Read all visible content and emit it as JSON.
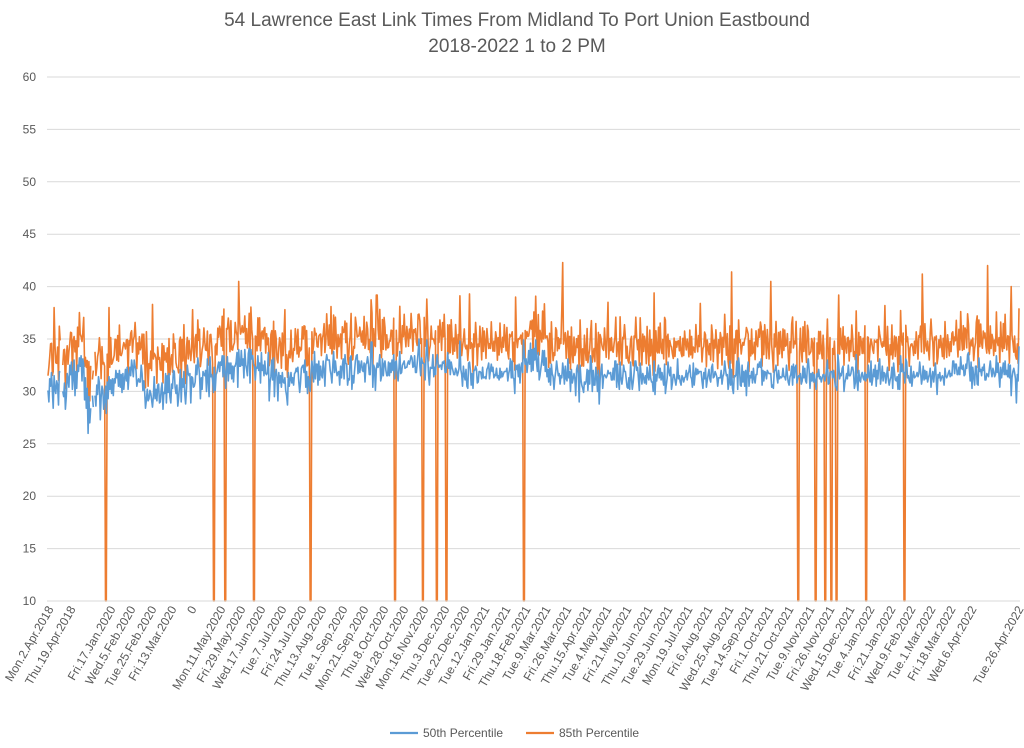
{
  "chart_data": {
    "type": "line",
    "title": [
      "54 Lawrence East Link Times From Midland To Port Union Eastbound",
      "2018-2022 1 to 2 PM"
    ],
    "xlabel": "",
    "ylabel": "",
    "ylim": [
      10,
      60
    ],
    "yticks": [
      10,
      15,
      20,
      25,
      30,
      35,
      40,
      45,
      50,
      55,
      60
    ],
    "grid": "horizontal",
    "legend_position": "bottom",
    "x_tick_labels": [
      "Mon.2.Apr.2018",
      "Thu.19.Apr.2018",
      "Fri.17.Jan.2020",
      "Wed.5.Feb.2020",
      "Tue.25.Feb.2020",
      "Fri.13.Mar.2020",
      "0",
      "Mon.11.May.2020",
      "Fri.29.May.2020",
      "Wed.17.Jun.2020",
      "Tue.7.Jul.2020",
      "Fri.24.Jul.2020",
      "Thu.13.Aug.2020",
      "Tue.1.Sep.2020",
      "Mon.21.Sep.2020",
      "Thu.8.Oct.2020",
      "Wed.28.Oct.2020",
      "Mon.16.Nov.2020",
      "Thu.3.Dec.2020",
      "Tue.22.Dec.2020",
      "Tue.12.Jan.2021",
      "Fri.29.Jan.2021",
      "Thu.18.Feb.2021",
      "Tue.9.Mar.2021",
      "Fri.26.Mar.2021",
      "Thu.15.Apr.2021",
      "Tue.4.May.2021",
      "Fri.21.May.2021",
      "Thu.10.Jun.2021",
      "Tue.29.Jun.2021",
      "Mon.19.Jul.2021",
      "Fri.6.Aug.2021",
      "Wed.25.Aug.2021",
      "Tue.14.Sep.2021",
      "Fri.1.Oct.2021",
      "Thu.21.Oct.2021",
      "Tue.9.Nov.2021",
      "Fri.26.Nov.2021",
      "Wed.15.Dec.2021",
      "Tue.4.Jan.2022",
      "Fri.21.Jan.2022",
      "Wed.9.Feb.2022",
      "Tue.1.Mar.2022",
      "Fri.18.Mar.2022",
      "Wed.6.Apr.2022",
      "Tue.26.Apr.2022"
    ],
    "series": [
      {
        "name": "50th Percentile",
        "color": "#5B9BD5",
        "values": [
          30.1,
          29.0,
          31.2,
          30.5,
          31.8,
          30.0,
          28.4,
          31.5,
          30.2,
          29.8,
          31.0,
          30.6,
          28.7,
          31.9,
          31.8,
          null,
          null,
          30.0,
          29.5,
          30.8,
          28.3,
          29.5,
          31.7,
          31.2,
          30.4,
          32.5,
          31.6,
          32.8,
          30.2,
          31.4,
          33.0,
          29.6,
          31.9,
          30.3,
          32.5,
          31.9,
          33.2,
          32.4,
          33.4,
          31.0,
          33.1,
          32.6,
          29.2,
          31.3,
          28.4,
          30.3,
          26.0,
          29.5,
          27.0,
          28.4,
          null,
          29.6,
          28.5,
          null,
          29.6,
          28.6,
          30.6,
          29.7,
          31.4,
          30.8,
          27.3,
          29.4,
          30.5,
          30.1,
          28.3,
          29.2,
          30.5,
          27.9,
          30.9,
          29.3,
          31.4,
          30.2,
          31.1,
          29.8,
          31.2,
          29.6,
          31.2,
          30.8,
          32.0,
          31.3,
          31.7,
          30.5,
          32.0,
          30.4,
          31.6,
          29.9,
          31.7,
          30.2,
          31.2,
          32.1,
          31.0,
          32.3,
          30.2,
          31.5,
          32.3,
          31.5,
          33.0,
          32.2,
          31.4,
          33.0,
          32.4,
          32.0,
          30.5,
          31.0,
          31.2,
          30.9,
          30.9,
          32.5,
          31.7,
          30.1,
          31.0,
          29.9,
          28.4,
          29.2,
          30.2,
          29.1,
          29.3,
          30.1,
          29.8,
          29.2,
          28.5,
          29.6,
          31.4,
          29.3,
          30.2,
          29.1,
          30.6,
          30.7,
          28.9,
          29.0,
          30.2,
          30.8,
          28.3,
          29.9,
          29.8,
          31.7,
          28.9,
          31.5,
          29.9,
          31.7,
          29.5,
          28.9,
          30.7,
          30.3,
          32.0,
          31.9,
          30.4,
          29.8,
          30.6,
          28.6,
          29.4,
          30.5,
          32.1,
          29.0,
          31.2,
          30.4,
          31.9,
          29.9,
          28.8,
          30.3,
          32.5,
          31.7,
          31.5,
          31.7,
          28.9,
          31.4,
          31.3,
          30.4,
          30.5,
          30.9,
          32.5,
          31.6,
          33.2,
          32.5,
          31.6,
          29.3,
          31.3,
          30.2,
          31.9,
          31.6,
          31.5,
          32.0,
          30.0,
          33.1,
          31.1,
          29.5,
          33.3,
          31.4,
          31.6,
          31.1,
          29.9,
          32.3,
          30.1,
          31.6,
          31.8,
          32.4,
          32.8,
          31.9,
          32.8,
          32.5,
          33.4,
          31.4,
          33.4,
          31.8,
          30.3,
          32.1,
          33.3,
          31.0,
          32.7,
          31.7,
          32.7,
          31.2,
          32.4,
          30.9,
          32.4,
          32.4,
          32.8,
          33.7,
          30.4,
          34.0,
          32.4,
          32.4,
          33.9,
          32.5,
          33.1,
          31.3,
          34.0,
          32.6,
          32.1,
          31.5,
          33.6,
          34.1,
          30.8,
          34.0,
          33.1,
          33.4,
          32.6,
          32.4,
          31.1,
          32.3,
          32.2,
          33.4,
          32.0,
          32.7,
          30.8,
          33.7,
          32.0,
          32.5,
          31.5,
          32.9,
          31.7,
          31.6,
          31.8,
          33.7,
          29.1,
          30.9,
          31.4,
          33.0,
          31.1,
          33.2,
          29.5,
          31.6,
          32.1,
          31.4,
          29.1,
          31.8,
          30.8,
          31.5,
          30.4,
          31.8,
          30.9,
          30.8,
          31.3,
          30.1,
          29.6,
          28.7,
          31.8,
          30.5,
          31.1,
          31.8,
          30.8,
          31.3,
          30.6,
          31.7,
          31.8,
          32.2,
          31.9,
          32.3,
          30.9,
          29.9,
          30.8,
          32.2,
          32.4,
          32.5,
          31.8,
          33.0,
          30.4,
          31.9,
          29.8,
          31.4,
          30.8,
          30.0,
          31.7,
          32.9,
          32.1,
          30.9,
          33.8,
          31.2,
          32.6,
          32.6,
          30.6,
          32.9,
          31.1,
          32.4,
          31.6,
          31.3,
          32.9,
          32.0,
          30.5,
          32.8,
          33.5,
          33.0,
          33.0,
          33.0,
          32.0,
          31.6,
          30.8,
          32.5,
          33.8,
          31.8,
          32.9,
          32.0,
          31.5,
          31.8,
          31.9,
          30.6,
          32.4,
          31.3,
          32.4,
          33.1,
          31.2,
          33.5,
          32.7,
          32.6,
          30.6,
          31.2,
          31.1,
          33.2,
          33.4,
          30.2,
          31.5,
          30.8,
          31.9,
          32.9,
          33.4,
          33.5,
          31.7,
          32.9,
          31.8,
          32.4,
          32.9,
          32.0,
          31.9,
          32.7,
          30.9,
          32.6,
          32.7,
          33.3,
          32.6,
          31.6,
          31.6,
          34.7,
          34.7,
          30.4,
          32.5,
          32.2,
          30.1,
          32.1,
          32.7,
          32.3,
          32.6,
          33.5,
          31.0,
          31.4,
          33.1,
          31.5,
          32.6,
          32.9,
          32.0,
          31.5,
          31.5,
          32.8,
          31.5,
          32.7,
          31.8,
          33.0,
          32.0,
          33.5,
          31.2,
          32.8,
          32.9,
          31.7,
          31.0,
          32.3,
          33.8,
          31.7,
          31.8,
          32.5,
          32.7,
          32.9,
          32.2,
          32.3,
          32.3,
          32.7,
          32.9,
          32.6,
          33.0,
          33.4,
          33.2,
          32.3,
          32.4,
          33.4,
          31.8,
          31.8,
          32.7,
          33.7,
          35.0,
          32.4,
          31.5,
          33.2,
          32.7,
          32.7,
          32.6,
          31.1,
          33.1,
          34.9,
          33.4,
          31.5,
          30.6,
          32.3,
          32.2,
          32.2,
          33.5,
          31.4,
          32.3,
          31.6,
          33.0,
          33.5,
          32.6,
          32.3,
          32.5,
          32.5,
          32.1,
          32.8,
          32.7,
          32.9,
          31.8,
          31.8,
          32.5,
          33.7,
          32.2,
          33.0,
          31.6,
          32.8,
          32.3,
          32.0,
          31.6,
          31.6,
          32.2,
          32.0,
          31.5,
          31.8,
          32.2,
          34.8,
          32.1,
          31.6,
          30.5,
          32.4,
          31.5,
          31.1,
          32.1,
          30.5,
          30.3,
          32.7,
          32.8,
          32.0,
          30.6,
          31.7,
          30.3,
          32.0,
          32.0,
          32.4,
          32.1,
          30.8,
          30.9,
          31.9,
          31.9,
          31.8,
          31.2,
          32.3,
          31.3,
          31.3,
          31.4,
          31.2,
          32.1,
          32.3,
          32.7,
          31.2,
          32.0,
          32.6,
          31.9,
          32.3,
          31.3,
          31.6,
          31.5,
          32.2,
          31.3,
          31.5,
          31.1,
          32.2,
          31.3,
          31.9,
          31.4,
          31.7,
          31.9,
          31.9,
          31.9,
          32.2,
          31.0,
          31.7,
          32.1,
          33.1,
          31.3,
          32.9,
          31.3,
          31.2,
          29.8,
          32.5,
          32.1,
          32.5,
          31.4,
          32.6,
          30.8,
          32.3,
          32.7,
          31.8,
          34.9,
          33.3,
          32.6,
          33.1,
          31.8,
          32.6,
          33.9,
          32.6,
          34.6,
          31.9,
          34.0,
          32.0,
          34.1,
          33.0,
          34.9,
          32.8,
          31.9,
          33.7,
          31.1,
          31.5,
          32.2,
          32.9,
          33.9,
          32.5,
          33.9,
          31.9,
          33.2,
          31.4,
          32.1,
          30.9,
          32.2,
          30.6,
          32.6,
          31.7,
          31.4,
          30.2,
          31.2,
          31.9,
          32.9,
          32.2,
          31.5,
          31.7,
          30.7,
          31.5,
          31.3,
          32.7,
          32.0,
          30.7,
          32.4,
          31.2,
          31.0,
          33.1,
          31.3,
          31.9,
          30.0,
          32.1,
          30.8,
          31.2,
          31.7,
          31.2,
          29.6,
          32.1,
          32.5,
          31.7,
          29.0,
          32.5,
          31.1,
          30.6,
          30.3,
          29.9,
          30.9,
          30.7,
          31.0,
          32.1,
          30.1,
          32.0,
          30.7,
          33.4,
          32.7,
          30.0,
          32.0,
          30.6,
          30.6,
          32.3,
          31.4,
          30.0,
          32.0,
          28.8,
          31.1,
          32.0,
          32.6,
          30.3,
          31.4,
          31.6,
          31.5,
          31.3,
          31.5,
          32.0,
          31.7,
          31.7,
          31.8,
          31.1,
          31.1,
          32.2,
          31.1,
          32.9,
          32.9,
          30.4,
          32.6,
          31.1,
          30.2,
          32.8,
          31.3,
          30.7,
          31.4,
          32.5,
          31.9,
          31.9,
          31.2,
          30.4,
          30.3,
          31.3,
          30.2,
          32.8,
          31.2,
          30.2,
          30.9,
          31.8,
          32.9,
          32.9,
          32.0,
          32.3,
          31.3,
          30.1,
          32.7,
          31.6,
          30.7,
          31.7,
          31.3,
          30.8,
          31.5,
          30.7,
          32.3,
          31.4,
          31.1,
          32.5,
          31.3,
          30.9,
          30.9,
          30.0,
          32.9,
          29.7,
          31.6,
          31.0,
          32.0,
          32.5,
          31.3,
          32.2,
          31.1,
          31.8,
          31.2,
          30.6,
          32.6,
          29.8,
          30.6,
          31.3,
          32.8,
          31.9,
          31.5,
          32.3,
          30.2,
          30.8,
          31.6,
          31.6,
          31.1,
          30.6,
          31.3,
          33.1,
          31.2,
          31.5,
          30.9,
          30.6,
          31.5,
          31.3,
          30.9,
          31.3,
          31.4,
          32.0,
          31.1,
          31.7,
          31.9,
          32.5,
          31.4,
          31.2,
          30.4,
          32.7,
          30.6,
          31.5,
          32.2,
          31.6,
          32.1,
          31.7,
          31.9,
          31.9,
          31.9,
          31.0,
          30.3,
          31.8,
          31.2,
          32.2,
          30.4,
          31.0,
          31.6,
          32.1,
          31.2,
          30.9,
          32.3,
          32.6,
          31.3,
          31.4,
          31.9,
          31.7,
          31.4,
          30.5,
          31.3,
          31.3,
          31.3,
          32.0,
          30.7,
          31.4,
          31.7,
          32.9,
          32.1,
          31.5,
          31.6,
          30.2,
          30.8,
          32.9,
          30.6,
          32.1,
          30.3,
          29.8,
          31.5,
          31.4,
          31.6,
          32.9,
          30.2,
          33.2,
          32.3,
          30.6,
          30.5,
          32.5,
          30.9,
          31.9,
          30.5,
          32.0,
          29.6,
          31.9,
          32.8,
          30.5,
          31.5,
          31.3,
          31.9,
          30.8,
          32.2,
          31.2,
          30.8,
          31.6,
          31.6,
          32.6,
          32.3,
          32.8,
          32.3,
          33.1,
          30.6,
          32.0,
          31.0,
          31.9,
          31.8,
          31.2,
          32.0,
          31.8,
          31.7,
          31.7,
          31.7,
          30.4,
          30.6,
          30.3,
          32.0,
          32.0,
          32.5,
          31.4,
          30.8,
          32.0,
          31.2,
          31.4,
          31.3,
          31.4,
          32.2,
          31.4,
          31.4,
          31.1,
          32.5,
          31.6,
          30.9,
          30.6,
          31.4,
          31.6,
          32.4,
          30.6,
          32.6,
          31.3,
          32.3,
          32.5,
          30.8,
          31.3,
          31.5,
          31.4,
          31.7,
          30.7,
          31.0,
          32.4,
          31.3,
          32.2,
          31.0,
          30.8,
          32.4,
          33.1,
          32.1,
          30.3,
          31.7,
          31.0,
          31.8,
          30.9,
          31.6,
          31.0,
          30.2,
          31.7,
          31.4,
          32.1,
          31.2,
          31.4,
          30.9,
          31.3,
          31.6,
          31.6,
          31.0,
          31.4,
          32.1,
          33.0,
          30.7,
          30.8,
          31.8,
          31.9,
          31.9,
          31.3,
          32.0,
          31.3,
          30.5,
          30.4,
          30.1,
          33.5,
          32.7,
          31.2,
          31.7,
          31.5,
          32.2,
          32.4,
          30.0,
          30.8,
          31.2,
          31.7,
          31.2,
          32.5,
          31.5,
          31.5,
          31.7,
          32.3,
          32.3,
          31.8,
          30.3,
          30.8,
          33.5,
          30.9,
          30.1,
          32.0,
          31.1,
          30.9,
          31.6,
          31.8,
          31.3,
          31.1,
          31.8,
          31.0,
          31.6,
          31.3,
          32.5,
          31.4,
          30.9,
          32.9,
          30.6,
          31.2,
          32.1,
          31.4,
          32.5,
          30.5,
          32.0,
          31.2,
          32.6,
          33.1,
          30.7,
          31.4,
          32.4,
          31.0,
          31.8,
          31.7,
          30.8,
          31.5,
          32.3,
          31.1,
          30.6,
          31.1,
          31.4,
          32.3,
          30.3,
          32.7,
          31.8,
          31.1,
          31.0,
          31.4,
          30.2,
          31.6,
          30.2,
          33.4,
          31.9,
          32.6,
          31.8,
          31.8,
          30.8,
          33.1,
          32.8,
          31.3,
          31.5,
          31.0,
          30.8,
          32.4,
          30.5,
          31.4,
          31.9,
          31.3,
          31.4,
          31.5,
          31.8,
          31.4,
          31.7,
          32.8,
          31.9,
          30.7,
          31.2,
          32.4,
          31.1,
          32.0,
          31.2,
          31.9,
          30.9,
          31.3,
          31.6,
          32.2,
          30.4,
          31.3,
          31.9,
          30.9,
          31.7,
          32.7,
          31.1,
          29.7,
          31.6,
          31.3,
          31.8,
          31.0,
          31.3,
          31.5,
          31.3,
          30.6,
          32.2,
          31.5,
          31.3,
          31.5,
          31.8,
          32.0,
          31.4,
          31.7,
          31.5,
          32.9,
          32.9,
          31.7,
          32.6,
          32.6,
          31.6,
          31.6,
          32.3,
          31.6,
          33.3,
          32.2,
          32.1,
          32.5,
          31.5,
          31.6,
          32.6,
          32.2,
          33.5,
          33.7,
          32.1,
          31.0,
          32.8,
          30.3,
          32.3,
          31.4,
          30.6,
          32.4,
          32.4,
          30.7,
          30.6,
          33.2,
          31.9,
          32.1,
          31.5,
          32.3,
          32.0,
          32.6,
          31.1,
          31.1,
          31.7,
          31.6,
          31.4,
          32.2,
          32.9,
          32.0,
          31.4,
          32.2,
          31.9,
          31.4,
          31.6,
          33.4,
          31.8,
          32.7,
          31.5,
          30.4,
          32.3,
          31.3,
          32.0,
          32.7,
          31.6,
          32.9,
          31.6,
          32.0,
          31.4,
          32.6,
          31.3,
          32.5,
          29.6,
          31.3,
          31.9,
          32.2,
          31.8,
          31.2,
          28.9,
          31.6,
          31.0,
          34.3
        ],
        "values_note": ""
      },
      {
        "name": "85th Percentile",
        "color": "#ED7D31",
        "values": []
      }
    ]
  },
  "legend": {
    "items": [
      "50th Percentile",
      "85th Percentile"
    ]
  }
}
